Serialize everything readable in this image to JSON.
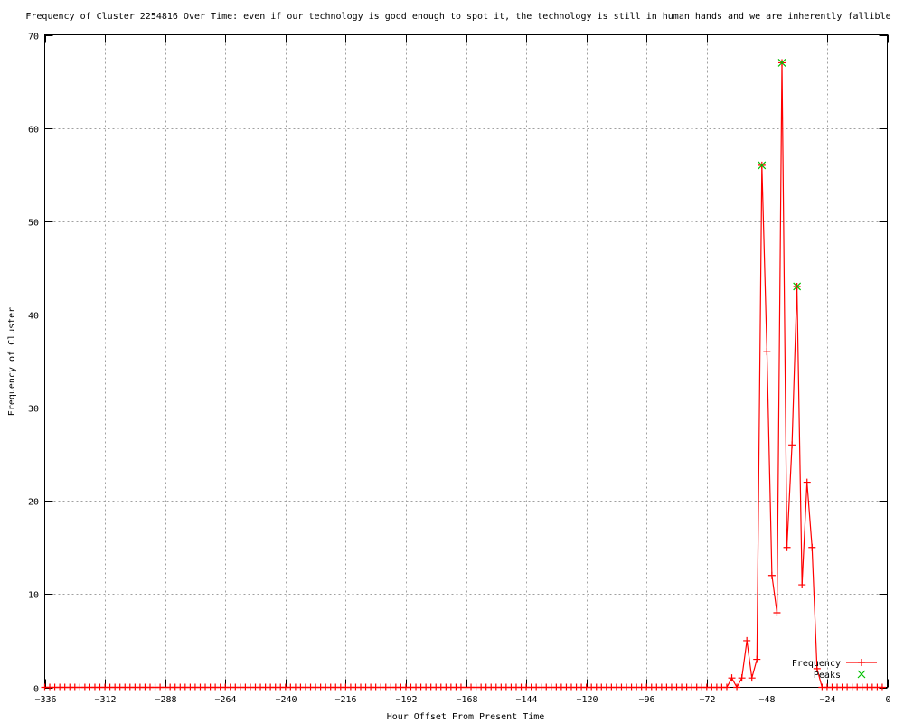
{
  "chart_data": {
    "type": "line",
    "title": "Frequency of Cluster 2254816 Over Time: even if our technology is good enough to spot it, the technology is still in human hands and we are inherently fallible",
    "xlabel": "Hour Offset From Present Time",
    "ylabel": "Frequency of Cluster",
    "xlim": [
      -336,
      0
    ],
    "ylim": [
      0,
      70
    ],
    "xticks": [
      -336,
      -312,
      -288,
      -264,
      -240,
      -216,
      -192,
      -168,
      -144,
      -120,
      -96,
      -72,
      -48,
      -24,
      0
    ],
    "yticks": [
      0,
      10,
      20,
      30,
      40,
      50,
      60,
      70
    ],
    "grid": true,
    "legend_position": "bottom-right",
    "series": [
      {
        "name": "Frequency",
        "color": "#ff0000",
        "marker": "plus",
        "x": [
          -336,
          -334,
          -332,
          -330,
          -328,
          -326,
          -324,
          -322,
          -320,
          -318,
          -316,
          -314,
          -312,
          -310,
          -308,
          -306,
          -304,
          -302,
          -300,
          -298,
          -296,
          -294,
          -292,
          -290,
          -288,
          -286,
          -284,
          -282,
          -280,
          -278,
          -276,
          -274,
          -272,
          -270,
          -268,
          -266,
          -264,
          -262,
          -260,
          -258,
          -256,
          -254,
          -252,
          -250,
          -248,
          -246,
          -244,
          -242,
          -240,
          -238,
          -236,
          -234,
          -232,
          -230,
          -228,
          -226,
          -224,
          -222,
          -220,
          -218,
          -216,
          -214,
          -212,
          -210,
          -208,
          -206,
          -204,
          -202,
          -200,
          -198,
          -196,
          -194,
          -192,
          -190,
          -188,
          -186,
          -184,
          -182,
          -180,
          -178,
          -176,
          -174,
          -172,
          -170,
          -168,
          -166,
          -164,
          -162,
          -160,
          -158,
          -156,
          -154,
          -152,
          -150,
          -148,
          -146,
          -144,
          -142,
          -140,
          -138,
          -136,
          -134,
          -132,
          -130,
          -128,
          -126,
          -124,
          -122,
          -120,
          -118,
          -116,
          -114,
          -112,
          -110,
          -108,
          -106,
          -104,
          -102,
          -100,
          -98,
          -96,
          -94,
          -92,
          -90,
          -88,
          -86,
          -84,
          -82,
          -80,
          -78,
          -76,
          -74,
          -72,
          -70,
          -68,
          -66,
          -64,
          -62,
          -60,
          -58,
          -56,
          -54,
          -52,
          -50,
          -48,
          -46,
          -44,
          -42,
          -40,
          -38,
          -36,
          -34,
          -32,
          -30,
          -28,
          -26,
          -24,
          -22,
          -20,
          -18,
          -16,
          -14,
          -12,
          -10,
          -8,
          -6,
          -4,
          -2
        ],
        "y": [
          0,
          0,
          0,
          0,
          0,
          0,
          0,
          0,
          0,
          0,
          0,
          0,
          0,
          0,
          0,
          0,
          0,
          0,
          0,
          0,
          0,
          0,
          0,
          0,
          0,
          0,
          0,
          0,
          0,
          0,
          0,
          0,
          0,
          0,
          0,
          0,
          0,
          0,
          0,
          0,
          0,
          0,
          0,
          0,
          0,
          0,
          0,
          0,
          0,
          0,
          0,
          0,
          0,
          0,
          0,
          0,
          0,
          0,
          0,
          0,
          0,
          0,
          0,
          0,
          0,
          0,
          0,
          0,
          0,
          0,
          0,
          0,
          0,
          0,
          0,
          0,
          0,
          0,
          0,
          0,
          0,
          0,
          0,
          0,
          0,
          0,
          0,
          0,
          0,
          0,
          0,
          0,
          0,
          0,
          0,
          0,
          0,
          0,
          0,
          0,
          0,
          0,
          0,
          0,
          0,
          0,
          0,
          0,
          0,
          0,
          0,
          0,
          0,
          0,
          0,
          0,
          0,
          0,
          0,
          0,
          0,
          0,
          0,
          0,
          0,
          0,
          0,
          0,
          0,
          0,
          0,
          0,
          0,
          0,
          0,
          0,
          0,
          1,
          0,
          1,
          5,
          1,
          3,
          56,
          36,
          12,
          8,
          67,
          15,
          26,
          43,
          11,
          22,
          15,
          2,
          0,
          0,
          0,
          0,
          0,
          0,
          0,
          0,
          0,
          0,
          0,
          0,
          0
        ]
      },
      {
        "name": "Peaks",
        "color": "#00c000",
        "marker": "cross",
        "x": [
          -50,
          -42,
          -36
        ],
        "y": [
          56,
          67,
          43
        ]
      }
    ]
  }
}
